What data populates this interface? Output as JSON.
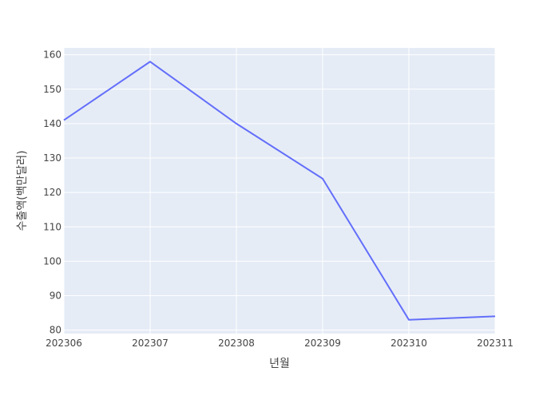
{
  "chart_data": {
    "type": "line",
    "title": "",
    "xlabel": "년월",
    "ylabel": "수출액(백만달러)",
    "categories": [
      "202306",
      "202307",
      "202308",
      "202309",
      "202310",
      "202311"
    ],
    "series": [
      {
        "values": [
          141,
          158,
          140,
          124,
          83,
          84
        ]
      }
    ],
    "ylim": [
      79,
      162
    ],
    "yticks": [
      80,
      90,
      100,
      110,
      120,
      130,
      140,
      150,
      160
    ],
    "grid": true,
    "legend": "none",
    "colors": {
      "background": "#e5ecf6",
      "grid": "#ffffff",
      "line": "#636efa",
      "text": "#444444"
    }
  }
}
